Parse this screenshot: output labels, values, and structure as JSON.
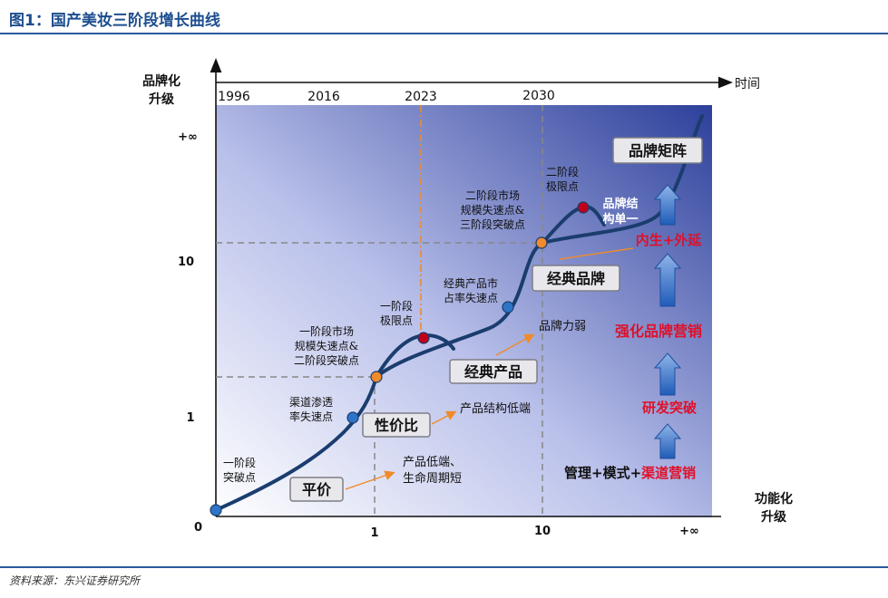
{
  "header": {
    "title": "图1：国产美妆三阶段增长曲线"
  },
  "footer": {
    "source": "资料来源：东兴证券研究所"
  },
  "axes": {
    "y_label_line1": "品牌化",
    "y_label_line2": "升级",
    "x_label_line1": "功能化",
    "x_label_line2": "升级",
    "time_label": "时间",
    "origin": "0",
    "x_ticks": [
      "1",
      "10",
      "+∞"
    ],
    "y_ticks": [
      "1",
      "10",
      "+∞"
    ],
    "years": [
      "1996",
      "2016",
      "2023",
      "2030"
    ]
  },
  "points": {
    "p1_break": "一阶段\n突破点",
    "p2_channel": "渠道渗透\n率失速点",
    "p3_stage1": "一阶段市场\n规模失速点&\n二阶段突破点",
    "p4_limit1": "一阶段\n极限点",
    "p5_share": "经典产品市\n占率失速点",
    "p6_stage2": "二阶段市场\n规模失速点&\n三阶段突破点",
    "p7_limit2": "二阶段\n极限点",
    "p8_single": "品牌结\n构单一"
  },
  "boxes": {
    "pingjia": "平价",
    "xingjiabi": "性价比",
    "jingdian_chanpin": "经典产品",
    "jingdian_pinpai": "经典品牌",
    "pinpai_juzhen": "品牌矩阵"
  },
  "notes": {
    "low_end": "产品低端、\n生命周期短",
    "structure_low": "产品结构低端",
    "brand_weak": "品牌力弱"
  },
  "drivers": {
    "d1_prefix": "管理+模式+",
    "d1_red": "渠道营销",
    "d2": "研发突破",
    "d3": "强化品牌营销",
    "d4": "内生+外延"
  },
  "colors": {
    "curve": "#1a3d6e",
    "accent_red": "#e0102a",
    "point_blue": "#2e75c8",
    "point_orange": "#f08a2a",
    "point_red": "#c0001a"
  }
}
